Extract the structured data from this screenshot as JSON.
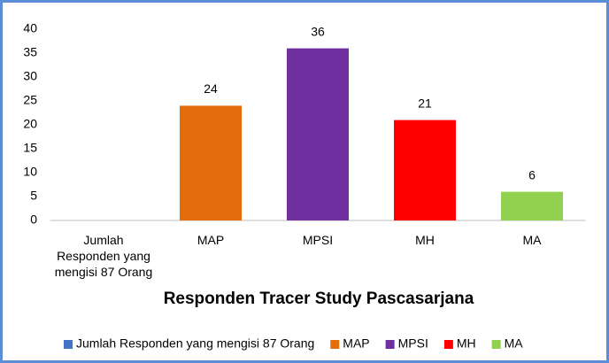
{
  "chart_data": {
    "type": "bar",
    "title": "Responden Tracer Study Pascasarjana",
    "categories": [
      "Jumlah Responden yang mengisi 87 Orang",
      "MAP",
      "MPSI",
      "MH",
      "MA"
    ],
    "values": [
      null,
      24,
      36,
      21,
      6
    ],
    "colors": [
      "#4472c4",
      "#e46c0a",
      "#7030a0",
      "#ff0000",
      "#92d050"
    ],
    "ylim": [
      0,
      40
    ],
    "yticks": [
      0,
      5,
      10,
      15,
      20,
      25,
      30,
      35,
      40
    ],
    "grid": false,
    "legend": "bottom"
  }
}
